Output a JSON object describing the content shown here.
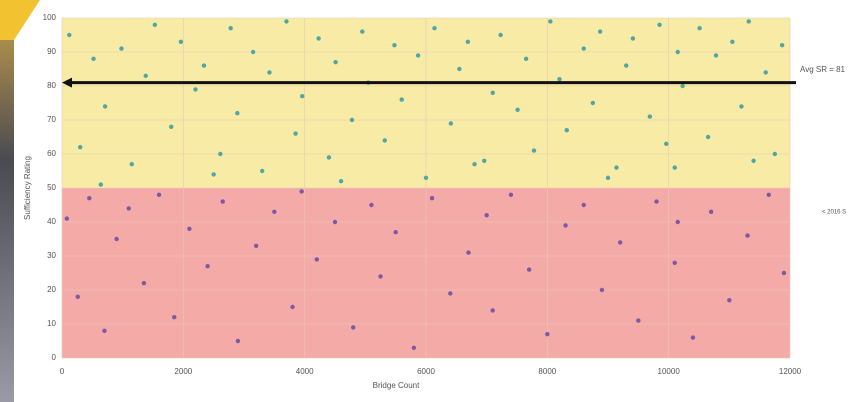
{
  "chart_data": {
    "type": "scatter",
    "x_label": "Bridge Count",
    "y_label": "Sufficiency Rating",
    "xlim": [
      0,
      12000
    ],
    "ylim": [
      0,
      100
    ],
    "xticks": [
      0,
      2000,
      4000,
      6000,
      8000,
      10000,
      12000
    ],
    "yticks": [
      0,
      10,
      20,
      30,
      40,
      50,
      60,
      70,
      80,
      90,
      100
    ],
    "bands": [
      {
        "from": 0,
        "to": 50,
        "color": "#f4aaa7"
      },
      {
        "from": 50,
        "to": 100,
        "color": "#f8eba6"
      }
    ],
    "avg_line": {
      "value": 81,
      "label": "Avg SR = 81",
      "color": "#111111"
    },
    "side_note": "< 2016 S",
    "series": [
      {
        "color": "#4fa6a4",
        "x": [
          120,
          300,
          520,
          710,
          980,
          1150,
          1380,
          1530,
          1800,
          1960,
          2200,
          2340,
          2610,
          2780,
          2890,
          3150,
          3300,
          3420,
          3700,
          3850,
          3960,
          4230,
          4400,
          4510,
          4780,
          4950,
          5050,
          5320,
          5480,
          5600,
          5870,
          6000,
          6140,
          6410,
          6550,
          6690,
          6960,
          7100,
          7230,
          7510,
          7650,
          7780,
          8050,
          8200,
          8320,
          8600,
          8750,
          8870,
          9140,
          9300,
          9410,
          9690,
          9850,
          9960,
          10150,
          10230,
          10510,
          10650,
          10780,
          11050,
          11200,
          11320,
          11600,
          11750,
          11870,
          640,
          2500,
          4600,
          6800,
          9000,
          10100,
          11400
        ],
        "values": [
          95,
          62,
          88,
          74,
          91,
          57,
          83,
          98,
          68,
          93,
          79,
          86,
          60,
          97,
          72,
          90,
          55,
          84,
          99,
          66,
          77,
          94,
          59,
          87,
          70,
          96,
          81,
          64,
          92,
          76,
          89,
          53,
          97,
          69,
          85,
          93,
          58,
          78,
          95,
          73,
          88,
          61,
          99,
          82,
          67,
          91,
          75,
          96,
          56,
          86,
          94,
          71,
          98,
          63,
          90,
          80,
          97,
          65,
          89,
          93,
          74,
          99,
          84,
          60,
          92,
          51,
          54,
          52,
          57,
          53,
          56,
          58
        ]
      },
      {
        "color": "#7a5aa6",
        "x": [
          80,
          260,
          450,
          700,
          900,
          1100,
          1350,
          1600,
          1850,
          2100,
          2400,
          2650,
          2900,
          3200,
          3500,
          3800,
          3950,
          4200,
          4500,
          4800,
          5100,
          5250,
          5500,
          5800,
          6100,
          6400,
          6700,
          7000,
          7100,
          7400,
          7700,
          8000,
          8300,
          8600,
          8900,
          9200,
          9500,
          9800,
          10100,
          10150,
          10400,
          10700,
          11000,
          11300,
          11650,
          11900
        ],
        "values": [
          41,
          18,
          47,
          8,
          35,
          44,
          22,
          48,
          12,
          38,
          27,
          46,
          5,
          33,
          43,
          15,
          49,
          29,
          40,
          9,
          45,
          24,
          37,
          3,
          47,
          19,
          31,
          42,
          14,
          48,
          26,
          7,
          39,
          45,
          20,
          34,
          11,
          46,
          28,
          40,
          6,
          43,
          17,
          36,
          48,
          25
        ]
      }
    ]
  }
}
